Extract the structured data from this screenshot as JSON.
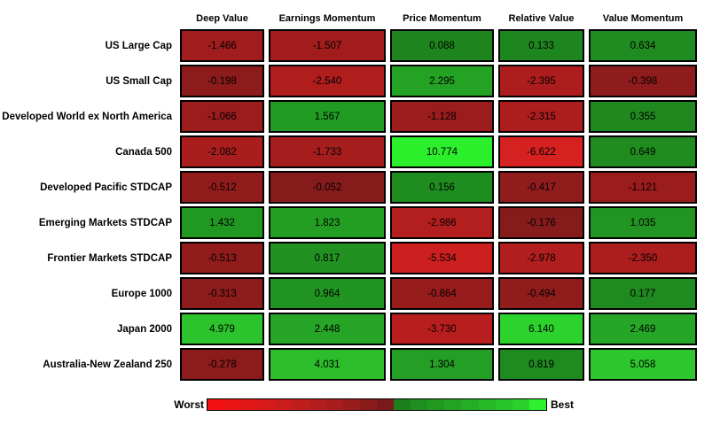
{
  "chart_data": {
    "type": "heatmap",
    "columns": [
      "Deep Value",
      "Earnings Momentum",
      "Price Momentum",
      "Relative Value",
      "Value Momentum"
    ],
    "rows": [
      {
        "label": "US Large Cap",
        "values": [
          -1.466,
          -1.507,
          0.088,
          0.133,
          0.634
        ],
        "display": [
          "-1.466",
          "-1.507",
          "0.088",
          "0.133",
          "0.634"
        ],
        "colors": [
          "#a11c1c",
          "#a21c1c",
          "#1e851e",
          "#1e861e",
          "#208b20"
        ]
      },
      {
        "label": "US Small Cap",
        "values": [
          -0.198,
          -2.54,
          2.295,
          -2.395,
          -0.398
        ],
        "display": [
          "-0.198",
          "-2.540",
          "2.295",
          "-2.395",
          "-0.398"
        ],
        "colors": [
          "#8c1b1b",
          "#b01d1d",
          "#23a223",
          "#ae1d1d",
          "#8f1c1c"
        ]
      },
      {
        "label": "Developed World ex North America",
        "values": [
          -1.066,
          1.567,
          -1.128,
          -2.315,
          0.355
        ],
        "display": [
          "-1.066",
          "1.567",
          "-1.128",
          "-2.315",
          "0.355"
        ],
        "colors": [
          "#9a1c1c",
          "#229b22",
          "#9b1c1c",
          "#ad1d1d",
          "#1f891f"
        ]
      },
      {
        "label": "Canada 500",
        "values": [
          -2.082,
          -1.733,
          10.774,
          -6.622,
          0.649
        ],
        "display": [
          "-2.082",
          "-1.733",
          "10.774",
          "-6.622",
          "0.649"
        ],
        "colors": [
          "#aa1d1d",
          "#a51d1d",
          "#2bef2b",
          "#d62121",
          "#208c20"
        ]
      },
      {
        "label": "Developed Pacific STDCAP",
        "values": [
          -0.512,
          -0.052,
          0.156,
          -0.417,
          -1.121
        ],
        "display": [
          "-0.512",
          "-0.052",
          "0.156",
          "-0.417",
          "-1.121"
        ],
        "colors": [
          "#921c1c",
          "#861b1b",
          "#1f8c1f",
          "#901c1c",
          "#9b1c1c"
        ]
      },
      {
        "label": "Emerging Markets STDCAP",
        "values": [
          1.432,
          1.823,
          -2.986,
          -0.176,
          1.035
        ],
        "display": [
          "1.432",
          "1.823",
          "-2.986",
          "-0.176",
          "1.035"
        ],
        "colors": [
          "#219821",
          "#239e23",
          "#b31e1e",
          "#851b1b",
          "#219421"
        ]
      },
      {
        "label": "Frontier Markets STDCAP",
        "values": [
          -0.513,
          0.817,
          -5.534,
          -2.978,
          -2.35
        ],
        "display": [
          "-0.513",
          "0.817",
          "-5.534",
          "-2.978",
          "-2.350"
        ],
        "colors": [
          "#921c1c",
          "#219221",
          "#cc2020",
          "#b21e1e",
          "#ac1d1d"
        ]
      },
      {
        "label": "Europe 1000",
        "values": [
          -0.313,
          0.964,
          -0.864,
          -0.494,
          0.177
        ],
        "display": [
          "-0.313",
          "0.964",
          "-0.864",
          "-0.494",
          "0.177"
        ],
        "colors": [
          "#8e1c1c",
          "#219321",
          "#971c1c",
          "#911c1c",
          "#1f8a1f"
        ]
      },
      {
        "label": "Japan 2000",
        "values": [
          4.979,
          2.448,
          -3.73,
          6.14,
          2.469
        ],
        "display": [
          "4.979",
          "2.448",
          "-3.730",
          "6.140",
          "2.469"
        ],
        "colors": [
          "#2cc32c",
          "#26a526",
          "#b91e1e",
          "#2cd32c",
          "#26a626"
        ]
      },
      {
        "label": "Australia-New Zealand 250",
        "values": [
          -0.278,
          4.031,
          1.304,
          0.819,
          5.058
        ],
        "display": [
          "-0.278",
          "4.031",
          "1.304",
          "0.819",
          "5.058"
        ],
        "colors": [
          "#8c1b1b",
          "#2cbc2c",
          "#259e25",
          "#1f8a1f",
          "#2dc62d"
        ]
      }
    ],
    "color_scale": {
      "worst_label": "Worst",
      "best_label": "Best",
      "min": -6.622,
      "max": 10.774,
      "negative_bright": "#f21010",
      "negative_dark": "#7a1919",
      "positive_dark": "#1b801b",
      "positive_bright": "#2ef02e",
      "legend_position": "bottom",
      "legend_stops": [
        "#f21010",
        "#e91414",
        "#e01717",
        "#d61a1a",
        "#cb1c1c",
        "#c01d1d",
        "#b41d1d",
        "#a71d1d",
        "#991c1c",
        "#8a1b1b",
        "#7a1919",
        "#1b801b",
        "#1e8f1e",
        "#219921",
        "#23a323",
        "#25ae25",
        "#27b927",
        "#29c429",
        "#2bd22b",
        "#2ef02e"
      ]
    }
  }
}
